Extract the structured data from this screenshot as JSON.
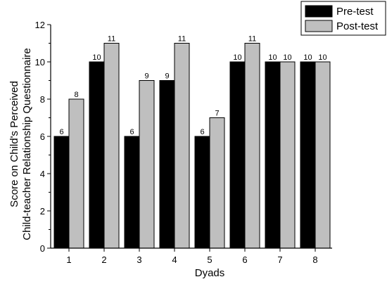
{
  "chart_data": {
    "type": "bar",
    "title": "",
    "xlabel": "Dyads",
    "ylabel_lines": [
      "Score on Child's Perceived",
      "Child-teacher Relationship Questionnaire"
    ],
    "categories": [
      "1",
      "2",
      "3",
      "4",
      "5",
      "6",
      "7",
      "8"
    ],
    "series": [
      {
        "name": "Pre-test",
        "color": "#000000",
        "values": [
          6,
          10,
          6,
          9,
          6,
          10,
          10,
          10
        ]
      },
      {
        "name": "Post-test",
        "color": "#bfbfbf",
        "values": [
          8,
          11,
          9,
          11,
          7,
          11,
          10,
          10
        ]
      }
    ],
    "ylim": [
      0,
      12
    ],
    "yticks": [
      0,
      2,
      4,
      6,
      8,
      10,
      12
    ],
    "grid": false,
    "legend_position": "top-right"
  }
}
